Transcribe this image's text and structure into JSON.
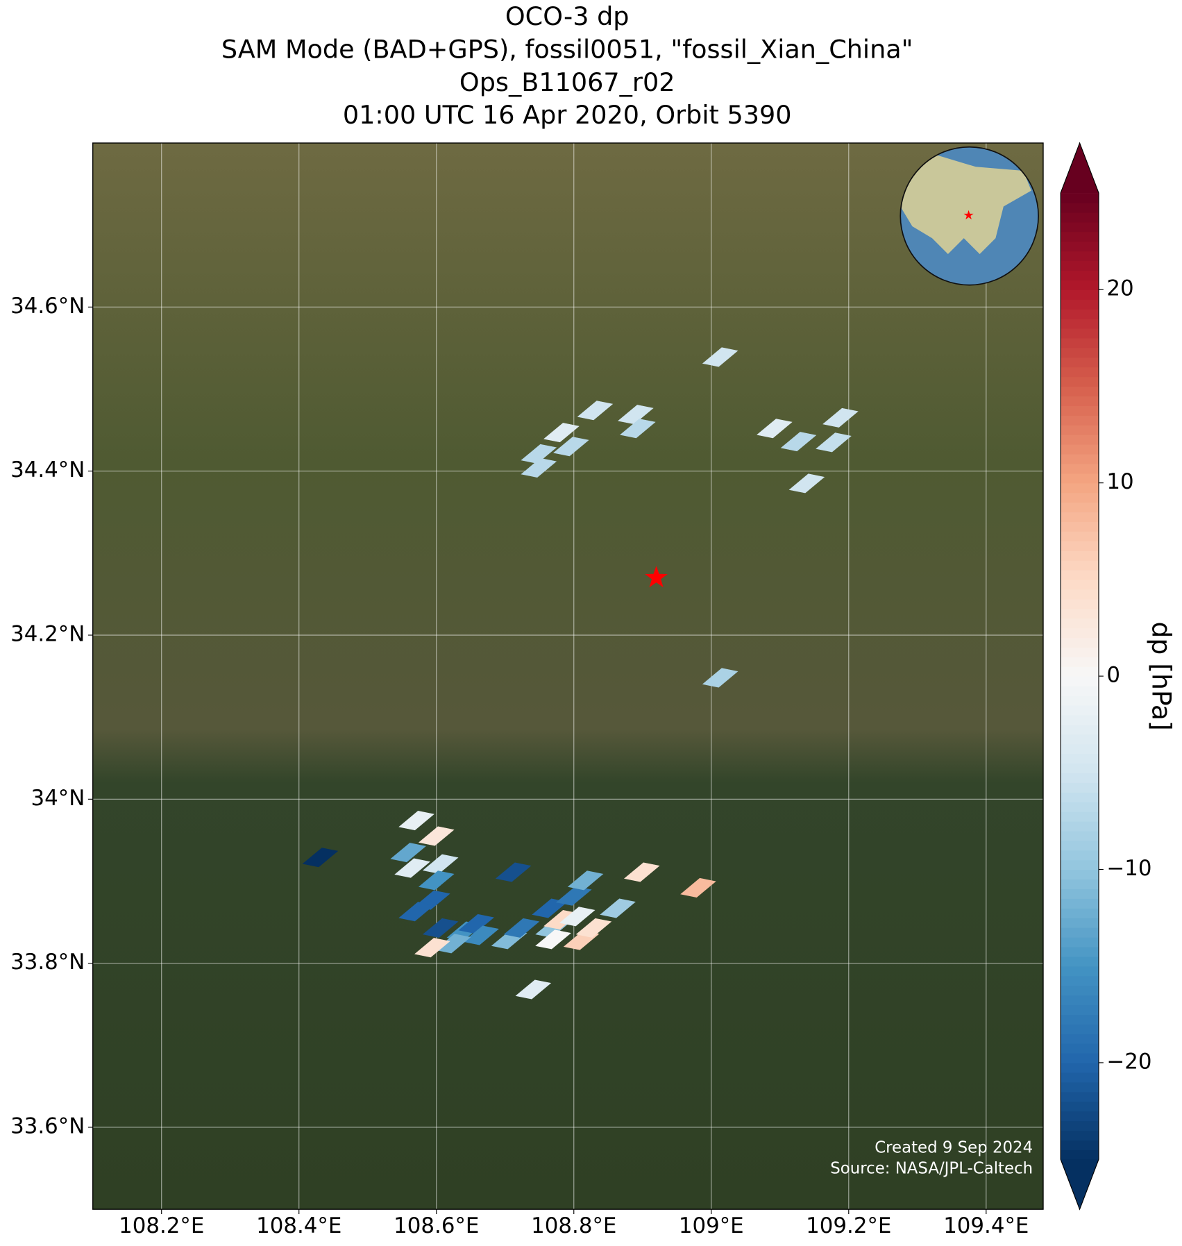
{
  "chart_data": {
    "type": "map",
    "title": [
      "OCO-3 dp",
      "SAM Mode (BAD+GPS), fossil0051, \"fossil_Xian_China\"",
      "Ops_B11067_r02",
      "01:00 UTC 16 Apr 2020, Orbit 5390"
    ],
    "xlim": [
      108.1,
      109.483
    ],
    "ylim": [
      33.5,
      34.8
    ],
    "xticks": [
      {
        "value": 108.2,
        "label": "108.2°E"
      },
      {
        "value": 108.4,
        "label": "108.4°E"
      },
      {
        "value": 108.6,
        "label": "108.6°E"
      },
      {
        "value": 108.8,
        "label": "108.8°E"
      },
      {
        "value": 109.0,
        "label": "109°E"
      },
      {
        "value": 109.2,
        "label": "109.2°E"
      },
      {
        "value": 109.4,
        "label": "109.4°E"
      }
    ],
    "yticks": [
      {
        "value": 33.6,
        "label": "33.6°N"
      },
      {
        "value": 33.8,
        "label": "33.8°N"
      },
      {
        "value": 34.0,
        "label": "34°N"
      },
      {
        "value": 34.2,
        "label": "34.2°N"
      },
      {
        "value": 34.4,
        "label": "34.4°N"
      },
      {
        "value": 34.6,
        "label": "34.6°N"
      }
    ],
    "grid": true,
    "site": {
      "x": 108.92,
      "y": 34.27,
      "color": "#ff0000"
    },
    "x": [
      109.013,
      108.831,
      108.89,
      108.893,
      108.782,
      108.796,
      108.749,
      108.749,
      109.092,
      109.127,
      109.188,
      109.178,
      109.139,
      109.013,
      108.431,
      108.571,
      108.6,
      108.559,
      108.565,
      108.606,
      108.6,
      108.594,
      108.571,
      108.606,
      108.641,
      108.658,
      108.665,
      108.624,
      108.594,
      108.712,
      108.706,
      108.724,
      108.765,
      108.77,
      108.77,
      108.782,
      108.8,
      108.817,
      108.805,
      108.811,
      108.829,
      108.864,
      108.899,
      108.981,
      108.741
    ],
    "y": [
      34.539,
      34.474,
      34.469,
      34.452,
      34.447,
      34.43,
      34.421,
      34.404,
      34.452,
      34.436,
      34.465,
      34.435,
      34.385,
      34.148,
      33.929,
      33.974,
      33.955,
      33.935,
      33.916,
      33.921,
      33.901,
      33.877,
      33.863,
      33.843,
      33.839,
      33.848,
      33.834,
      33.824,
      33.819,
      33.911,
      33.829,
      33.843,
      33.867,
      33.843,
      33.829,
      33.853,
      33.882,
      33.901,
      33.857,
      33.828,
      33.843,
      33.867,
      33.911,
      33.892,
      33.768
    ],
    "values": [
      -5,
      -5,
      -5,
      -7,
      -3,
      -7,
      -7,
      -7,
      -3,
      -7,
      -5,
      -6,
      -5,
      -8,
      -25,
      -2,
      3,
      -13,
      -3,
      -5,
      -15,
      -20,
      -20,
      -22,
      -15,
      -20,
      -16,
      -12,
      4,
      -22,
      -11,
      -18,
      -20,
      -10,
      0,
      5,
      -18,
      -12,
      -2,
      6,
      4,
      -9,
      4,
      8,
      -3
    ],
    "colormap": [
      "#053061",
      "#2166ac",
      "#4393c3",
      "#92c5de",
      "#d1e5f0",
      "#f7f7f7",
      "#fddbc7",
      "#f4a582",
      "#d6604d",
      "#b2182b",
      "#67001f"
    ],
    "clim": [
      -25,
      25
    ],
    "cticks": [
      {
        "value": -20,
        "label": "−20"
      },
      {
        "value": -10,
        "label": "−10"
      },
      0,
      10,
      20
    ],
    "colorbar_label": "dp [hPa]",
    "notes": [
      "Created 9 Sep 2024",
      "Source: NASA/JPL-Caltech"
    ]
  }
}
